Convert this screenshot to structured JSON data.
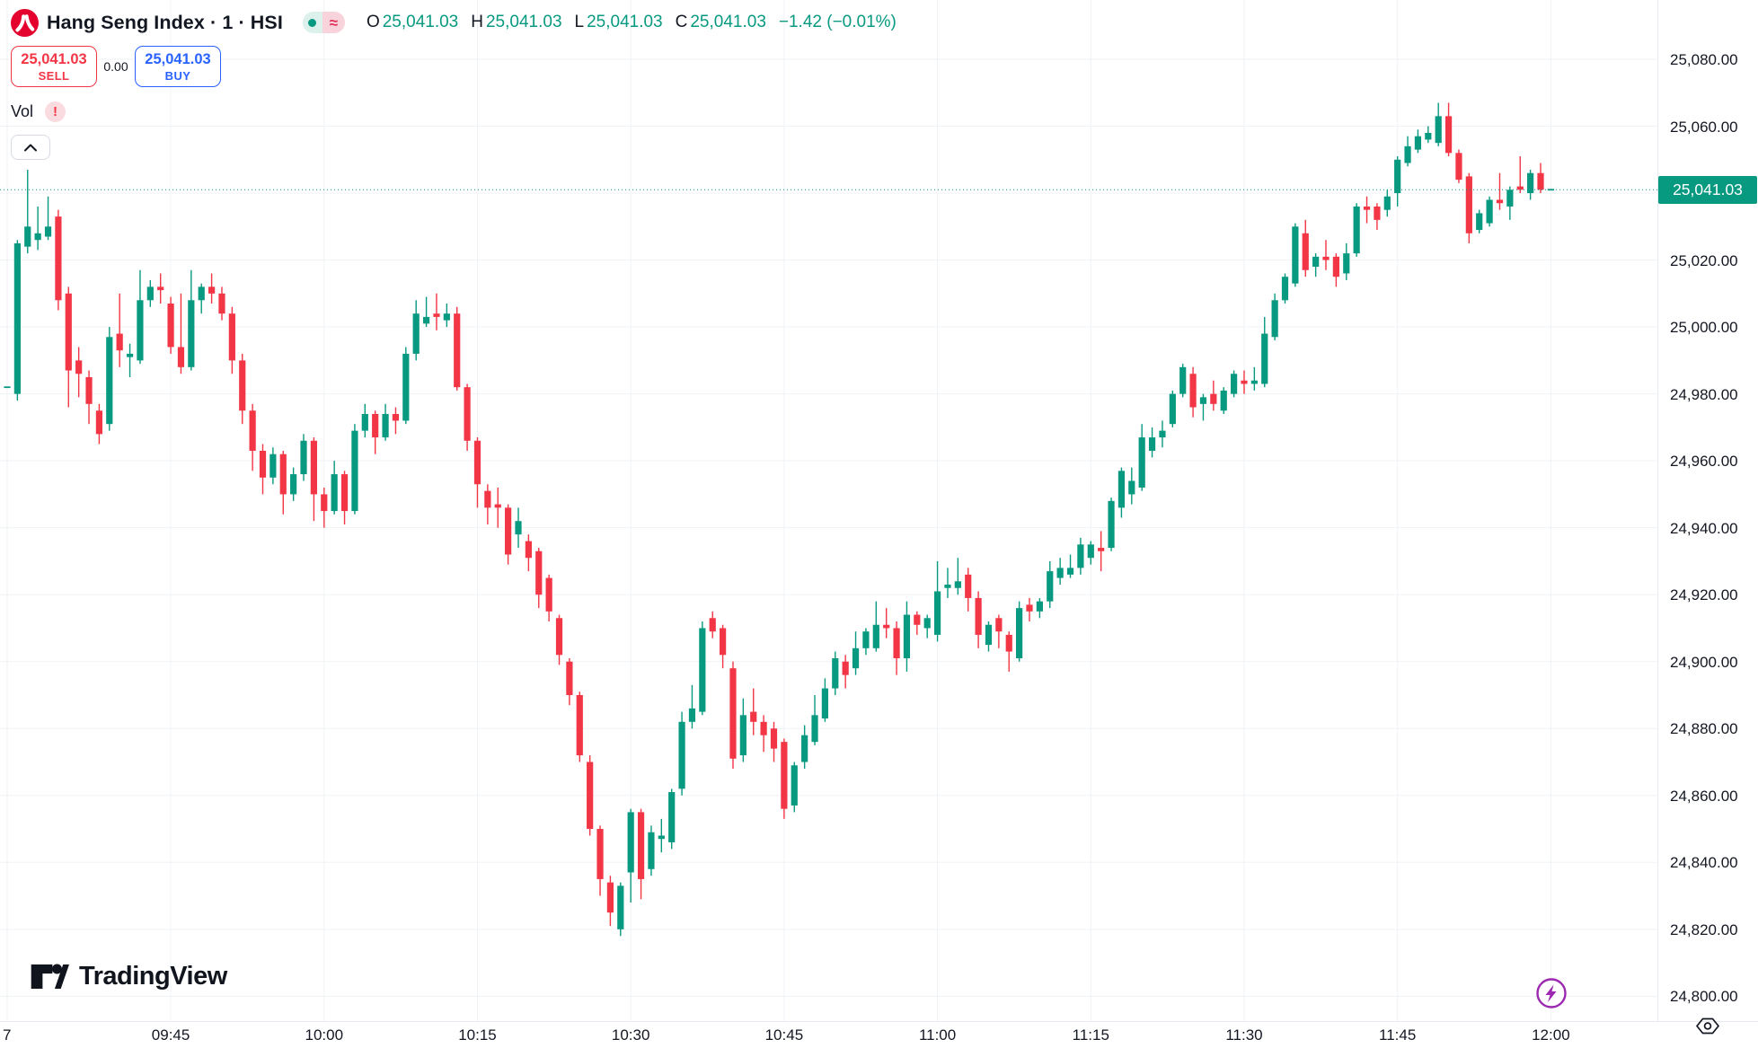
{
  "header": {
    "symbol_title": "Hang Seng Index · 1 · HSI",
    "market_status": {
      "approx_symbol": "≈"
    },
    "ohlc": {
      "o_label": "O",
      "o": "25,041.03",
      "h_label": "H",
      "h": "25,041.03",
      "l_label": "L",
      "l": "25,041.03",
      "c_label": "C",
      "c": "25,041.03",
      "change": "−1.42 (−0.01%)"
    },
    "trade_panel": {
      "sell_price": "25,041.03",
      "sell_label": "SELL",
      "spread": "0.00",
      "buy_price": "25,041.03",
      "buy_label": "BUY"
    },
    "indicator": {
      "label": "Vol",
      "error_badge": "!"
    }
  },
  "watermark_logo": {
    "text": "TradingView"
  },
  "axes": {
    "current_price_label": "25,041.03",
    "grid_prices": [
      25080,
      25060,
      25040,
      25020,
      25000,
      24980,
      24960,
      24940,
      24920,
      24900,
      24880,
      24860,
      24840,
      24820,
      24800
    ],
    "price_labels": [
      {
        "p": 25080,
        "t": "25,080.00"
      },
      {
        "p": 25060,
        "t": "25,060.00"
      },
      {
        "p": 25020,
        "t": "25,020.00"
      },
      {
        "p": 25000,
        "t": "25,000.00"
      },
      {
        "p": 24980,
        "t": "24,980.00"
      },
      {
        "p": 24960,
        "t": "24,960.00"
      },
      {
        "p": 24940,
        "t": "24,940.00"
      },
      {
        "p": 24920,
        "t": "24,920.00"
      },
      {
        "p": 24900,
        "t": "24,900.00"
      },
      {
        "p": 24880,
        "t": "24,880.00"
      },
      {
        "p": 24860,
        "t": "24,860.00"
      },
      {
        "p": 24840,
        "t": "24,840.00"
      },
      {
        "p": 24820,
        "t": "24,820.00"
      },
      {
        "p": 24800,
        "t": "24,800.00"
      }
    ],
    "time_labels": [
      {
        "i": 0,
        "t": "7"
      },
      {
        "i": 16,
        "t": "09:45"
      },
      {
        "i": 31,
        "t": "10:00"
      },
      {
        "i": 46,
        "t": "10:15"
      },
      {
        "i": 61,
        "t": "10:30"
      },
      {
        "i": 76,
        "t": "10:45"
      },
      {
        "i": 91,
        "t": "11:00"
      },
      {
        "i": 106,
        "t": "11:15"
      },
      {
        "i": 121,
        "t": "11:30"
      },
      {
        "i": 136,
        "t": "11:45"
      },
      {
        "i": 151,
        "t": "12:00"
      }
    ]
  },
  "chart_data": {
    "type": "candlestick",
    "title": "Hang Seng Index",
    "symbol": "HSI",
    "interval": "1 minute",
    "start_time": "09:29",
    "end_time": "12:00",
    "current_price": 25041.03,
    "change": -1.42,
    "change_pct": -0.01,
    "up_color": "#089981",
    "down_color": "#F23645",
    "ylim": [
      24800,
      25080
    ],
    "ohlc_format": "[open, high, low, close]",
    "candles": [
      [
        24982,
        24982,
        24982,
        24982
      ],
      [
        24980,
        25026,
        24978,
        25025
      ],
      [
        25024,
        25047,
        25022,
        25030
      ],
      [
        25026,
        25036,
        25023,
        25028
      ],
      [
        25027,
        25039,
        25026,
        25030
      ],
      [
        25033,
        25035,
        25005,
        25008
      ],
      [
        25010,
        25012,
        24976,
        24987
      ],
      [
        24990,
        24994,
        24979,
        24986
      ],
      [
        24985,
        24987,
        24971,
        24977
      ],
      [
        24975,
        24977,
        24965,
        24968
      ],
      [
        24971,
        25000,
        24969,
        24997
      ],
      [
        24998,
        25010,
        24988,
        24993
      ],
      [
        24991,
        24995,
        24985,
        24992
      ],
      [
        24990,
        25017,
        24989,
        25008
      ],
      [
        25008,
        25014,
        25006,
        25012
      ],
      [
        25012,
        25016,
        25007,
        25011
      ],
      [
        25007,
        25009,
        24992,
        24994
      ],
      [
        24994,
        25010,
        24986,
        24988
      ],
      [
        24988,
        25017,
        24987,
        25008
      ],
      [
        25008,
        25013,
        25004,
        25012
      ],
      [
        25012,
        25016,
        25007,
        25010
      ],
      [
        25010,
        25012,
        25002,
        25004
      ],
      [
        25004,
        25006,
        24986,
        24990
      ],
      [
        24990,
        24992,
        24971,
        24975
      ],
      [
        24975,
        24977,
        24957,
        24963
      ],
      [
        24963,
        24965,
        24950,
        24955
      ],
      [
        24955,
        24964,
        24953,
        24962
      ],
      [
        24962,
        24963,
        24944,
        24950
      ],
      [
        24950,
        24958,
        24948,
        24956
      ],
      [
        24956,
        24968,
        24954,
        24966
      ],
      [
        24966,
        24967,
        24942,
        24950
      ],
      [
        24950,
        24952,
        24940,
        24945
      ],
      [
        24945,
        24960,
        24944,
        24956
      ],
      [
        24956,
        24957,
        24941,
        24945
      ],
      [
        24945,
        24971,
        24944,
        24969
      ],
      [
        24969,
        24977,
        24967,
        24974
      ],
      [
        24974,
        24975,
        24962,
        24967
      ],
      [
        24967,
        24977,
        24966,
        24974
      ],
      [
        24974,
        24976,
        24968,
        24972
      ],
      [
        24972,
        24994,
        24971,
        24992
      ],
      [
        24992,
        25008,
        24990,
        25004
      ],
      [
        25001,
        25009,
        25000,
        25003
      ],
      [
        25004,
        25010,
        24999,
        25003
      ],
      [
        25002,
        25007,
        25000,
        25004
      ],
      [
        25004,
        25006,
        24981,
        24982
      ],
      [
        24982,
        24983,
        24963,
        24966
      ],
      [
        24966,
        24967,
        24946,
        24953
      ],
      [
        24951,
        24953,
        24941,
        24946
      ],
      [
        24947,
        24952,
        24940,
        24946
      ],
      [
        24946,
        24947,
        24929,
        24932
      ],
      [
        24938,
        24946,
        24934,
        24942
      ],
      [
        24936,
        24938,
        24927,
        24931
      ],
      [
        24933,
        24934,
        24916,
        24920
      ],
      [
        24925,
        24926,
        24912,
        24915
      ],
      [
        24913,
        24914,
        24899,
        24902
      ],
      [
        24900,
        24901,
        24887,
        24890
      ],
      [
        24890,
        24891,
        24870,
        24872
      ],
      [
        24870,
        24872,
        24848,
        24850
      ],
      [
        24850,
        24851,
        24830,
        24835
      ],
      [
        24834,
        24836,
        24821,
        24825
      ],
      [
        24820,
        24834,
        24818,
        24833
      ],
      [
        24837,
        24856,
        24828,
        24855
      ],
      [
        24855,
        24856,
        24829,
        24835
      ],
      [
        24838,
        24851,
        24836,
        24849
      ],
      [
        24847,
        24853,
        24843,
        24848
      ],
      [
        24846,
        24862,
        24844,
        24861
      ],
      [
        24862,
        24885,
        24860,
        24882
      ],
      [
        24882,
        24893,
        24880,
        24886
      ],
      [
        24885,
        24912,
        24884,
        24910
      ],
      [
        24913,
        24915,
        24907,
        24909
      ],
      [
        24910,
        24911,
        24898,
        24902
      ],
      [
        24898,
        24900,
        24868,
        24871
      ],
      [
        24872,
        24889,
        24870,
        24884
      ],
      [
        24885,
        24892,
        24878,
        24882
      ],
      [
        24882,
        24884,
        24873,
        24878
      ],
      [
        24880,
        24882,
        24870,
        24874
      ],
      [
        24876,
        24877,
        24853,
        24856
      ],
      [
        24857,
        24870,
        24855,
        24869
      ],
      [
        24870,
        24881,
        24868,
        24878
      ],
      [
        24876,
        24890,
        24875,
        24884
      ],
      [
        24883,
        24895,
        24882,
        24892
      ],
      [
        24892,
        24903,
        24890,
        24901
      ],
      [
        24900,
        24902,
        24892,
        24896
      ],
      [
        24898,
        24909,
        24896,
        24904
      ],
      [
        24904,
        24910,
        24902,
        24909
      ],
      [
        24904,
        24918,
        24903,
        24911
      ],
      [
        24911,
        24916,
        24907,
        24910
      ],
      [
        24910,
        24912,
        24896,
        24901
      ],
      [
        24901,
        24918,
        24897,
        24914
      ],
      [
        24914,
        24915,
        24908,
        24911
      ],
      [
        24910,
        24914,
        24907,
        24913
      ],
      [
        24908,
        24930,
        24906,
        24921
      ],
      [
        24922,
        24928,
        24919,
        24923
      ],
      [
        24922,
        24931,
        24920,
        24924
      ],
      [
        24926,
        24928,
        24915,
        24919
      ],
      [
        24919,
        24921,
        24904,
        24908
      ],
      [
        24905,
        24912,
        24903,
        24911
      ],
      [
        24913,
        24914,
        24904,
        24909
      ],
      [
        24908,
        24909,
        24897,
        24903
      ],
      [
        24901,
        24918,
        24900,
        24916
      ],
      [
        24917,
        24919,
        24912,
        24915
      ],
      [
        24915,
        24919,
        24913,
        24918
      ],
      [
        24918,
        24930,
        24916,
        24927
      ],
      [
        24925,
        24931,
        24923,
        24928
      ],
      [
        24926,
        24932,
        24925,
        24928
      ],
      [
        24928,
        24937,
        24926,
        24935
      ],
      [
        24931,
        24936,
        24929,
        24935
      ],
      [
        24934,
        24939,
        24927,
        24933
      ],
      [
        24934,
        24949,
        24933,
        24948
      ],
      [
        24946,
        24958,
        24943,
        24957
      ],
      [
        24950,
        24958,
        24947,
        24954
      ],
      [
        24952,
        24971,
        24951,
        24967
      ],
      [
        24963,
        24970,
        24961,
        24967
      ],
      [
        24967,
        24972,
        24964,
        24969
      ],
      [
        24971,
        24981,
        24970,
        24980
      ],
      [
        24980,
        24989,
        24979,
        24988
      ],
      [
        24986,
        24988,
        24973,
        24976
      ],
      [
        24977,
        24980,
        24972,
        24979
      ],
      [
        24980,
        24984,
        24975,
        24977
      ],
      [
        24975,
        24982,
        24974,
        24981
      ],
      [
        24980,
        24987,
        24979,
        24986
      ],
      [
        24984,
        24987,
        24980,
        24983
      ],
      [
        24983,
        24988,
        24981,
        24984
      ],
      [
        24983,
        25003,
        24982,
        24998
      ],
      [
        24997,
        25010,
        24996,
        25008
      ],
      [
        25008,
        25016,
        25007,
        25015
      ],
      [
        25013,
        25031,
        25012,
        25030
      ],
      [
        25028,
        25032,
        25015,
        25017
      ],
      [
        25018,
        25022,
        25015,
        25021
      ],
      [
        25021,
        25026,
        25017,
        25020
      ],
      [
        25021,
        25022,
        25012,
        25015
      ],
      [
        25016,
        25025,
        25014,
        25022
      ],
      [
        25022,
        25037,
        25021,
        25036
      ],
      [
        25036,
        25039,
        25031,
        25035
      ],
      [
        25036,
        25037,
        25029,
        25032
      ],
      [
        25035,
        25041,
        25033,
        25039
      ],
      [
        25040,
        25051,
        25036,
        25050
      ],
      [
        25049,
        25057,
        25048,
        25054
      ],
      [
        25053,
        25059,
        25052,
        25057
      ],
      [
        25056,
        25060,
        25055,
        25058
      ],
      [
        25055,
        25067,
        25054,
        25063
      ],
      [
        25063,
        25067,
        25051,
        25052
      ],
      [
        25052,
        25053,
        25043,
        25044
      ],
      [
        25045,
        25046,
        25025,
        25028
      ],
      [
        25029,
        25035,
        25028,
        25034
      ],
      [
        25031,
        25039,
        25030,
        25038
      ],
      [
        25038,
        25046,
        25035,
        25037
      ],
      [
        25036,
        25042,
        25032,
        25041
      ],
      [
        25042,
        25051,
        25040,
        25041
      ],
      [
        25040,
        25047,
        25038,
        25046
      ],
      [
        25046,
        25049,
        25040,
        25041
      ],
      [
        25041,
        25041.03,
        25040.5,
        25041.03
      ]
    ]
  },
  "colors": {
    "up": "#089981",
    "down": "#F23645",
    "buy_blue": "#2962FF",
    "text_dark": "#131722",
    "grid": "#EFF2F6",
    "lightning_purple": "#9C27B0",
    "symbol_logo_red": "#E4032E"
  }
}
